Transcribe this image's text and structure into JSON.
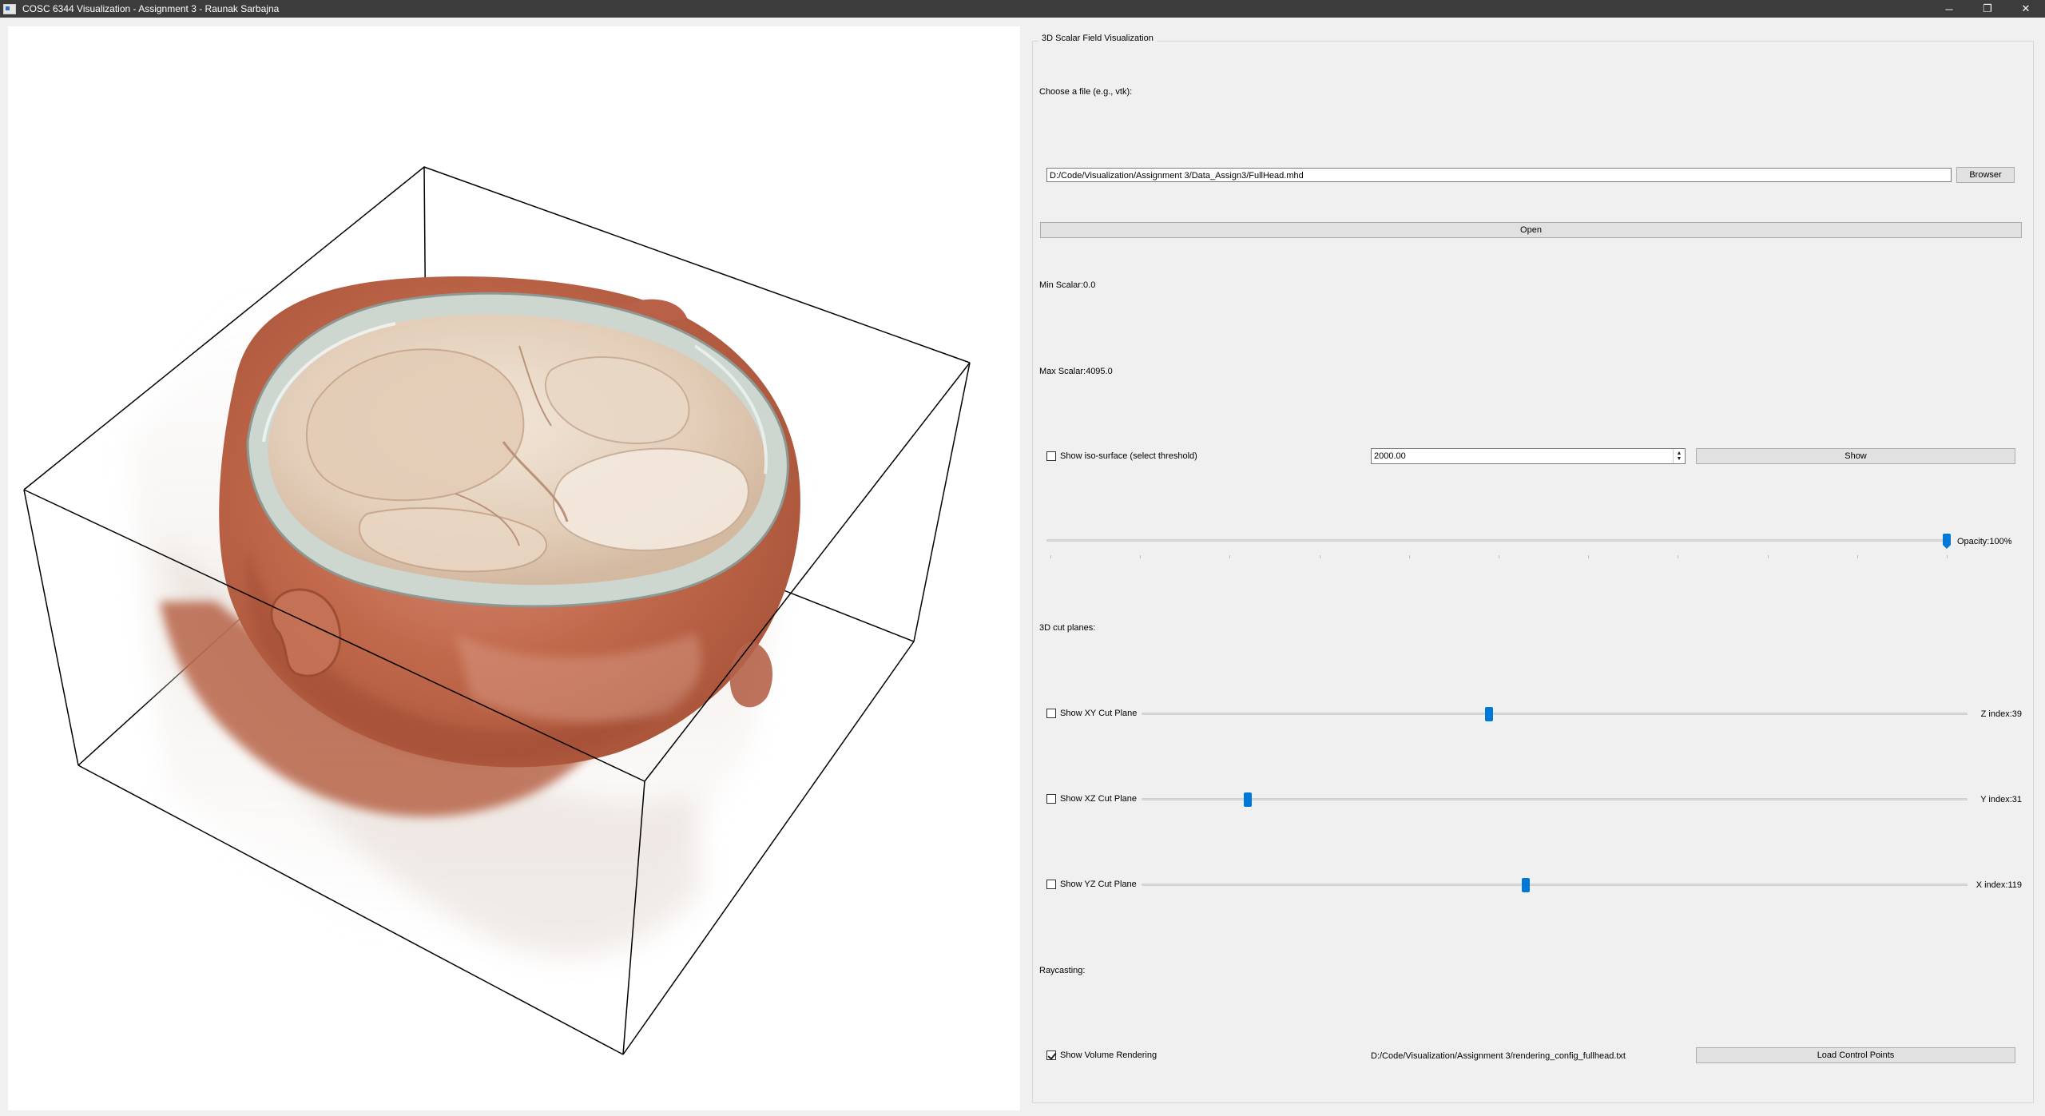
{
  "window": {
    "title": "COSC 6344 Visualization - Assignment 3 - Raunak Sarbajna",
    "minimize_glyph": "─",
    "restore_glyph": "❐",
    "close_glyph": "✕"
  },
  "panel": {
    "group_title": "3D Scalar Field Visualization",
    "choose_file_label": "Choose a file (e.g., vtk):",
    "file_path": "D:/Code/Visualization/Assignment 3/Data_Assign3/FullHead.mhd",
    "browser_label": "Browser",
    "open_label": "Open",
    "min_scalar": "Min Scalar:0.0",
    "max_scalar": "Max Scalar:4095.0",
    "iso": {
      "checkbox_label": "Show iso-surface (select threshold)",
      "checked": false,
      "threshold": "2000.00",
      "show_label": "Show"
    },
    "opacity": {
      "label": "Opacity:100%",
      "value": 1.0
    },
    "cut_planes_label": "3D cut planes:",
    "cut_planes": [
      {
        "checkbox_label": "Show XY Cut Plane",
        "checked": false,
        "index_label": "Z index:39",
        "position": 0.42
      },
      {
        "checkbox_label": "Show XZ Cut Plane",
        "checked": false,
        "index_label": "Y index:31",
        "position": 0.125
      },
      {
        "checkbox_label": "Show YZ Cut Plane",
        "checked": false,
        "index_label": "X index:119",
        "position": 0.465
      }
    ],
    "raycasting_label": "Raycasting:",
    "volume": {
      "checkbox_label": "Show Volume Rendering",
      "checked": true,
      "config_path": "D:/Code/Visualization/Assignment 3/rendering_config_fullhead.txt",
      "load_label": "Load Control Points"
    }
  },
  "colors": {
    "accent": "#0078d7",
    "titlebar": "#3c3c3c",
    "skin": "#c8765a",
    "bone": "#e9dccd"
  }
}
